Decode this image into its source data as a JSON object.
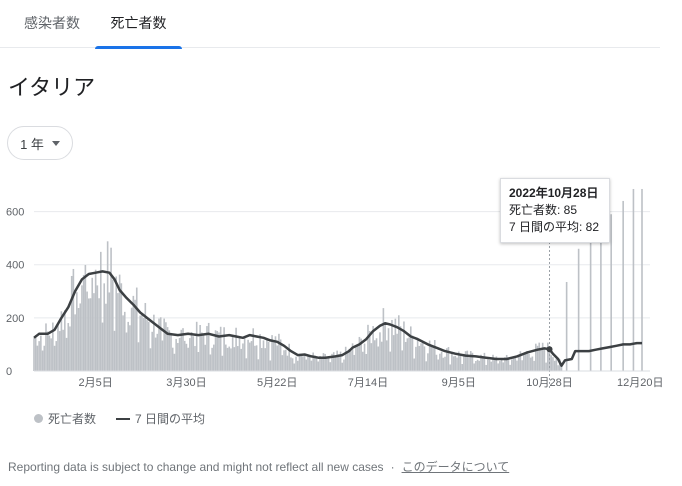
{
  "tabs": [
    {
      "label": "感染者数",
      "active": false
    },
    {
      "label": "死亡者数",
      "active": true
    }
  ],
  "region": "イタリア",
  "range_selector": {
    "label": "1 年"
  },
  "tooltip": {
    "date": "2022年10月28日",
    "deaths": "死亡者数: 85",
    "avg": "7 日間の平均: 82"
  },
  "legend": {
    "deaths": "死亡者数",
    "avg": "7 日間の平均"
  },
  "footer": {
    "note": "Reporting data is subject to change and might not reflect all new cases",
    "separator": "·",
    "link": "このデータについて"
  },
  "colors": {
    "bars": "#bdc1c6",
    "line": "#3c4043",
    "tab_active": "#1a73e8"
  },
  "chart_data": {
    "type": "bar",
    "ylim": [
      0,
      700
    ],
    "y_ticks": [
      "0",
      "200",
      "400",
      "600"
    ],
    "x_tick_labels": [
      "2月5日",
      "3月30日",
      "5月22日",
      "7月14日",
      "9月5日",
      "10月28日",
      "12月20日"
    ],
    "x_tick_day_index": [
      36,
      89,
      142,
      195,
      248,
      301,
      354
    ],
    "highlight_day_index": 301,
    "series": [
      {
        "name": "7 日間の平均",
        "kind": "line",
        "points": [
          [
            0,
            125
          ],
          [
            3,
            140
          ],
          [
            8,
            140
          ],
          [
            12,
            155
          ],
          [
            16,
            200
          ],
          [
            20,
            240
          ],
          [
            24,
            300
          ],
          [
            28,
            345
          ],
          [
            32,
            365
          ],
          [
            36,
            370
          ],
          [
            40,
            375
          ],
          [
            44,
            370
          ],
          [
            47,
            345
          ],
          [
            50,
            305
          ],
          [
            54,
            275
          ],
          [
            58,
            250
          ],
          [
            62,
            220
          ],
          [
            66,
            200
          ],
          [
            70,
            180
          ],
          [
            74,
            160
          ],
          [
            78,
            140
          ],
          [
            84,
            135
          ],
          [
            90,
            140
          ],
          [
            96,
            135
          ],
          [
            102,
            140
          ],
          [
            108,
            130
          ],
          [
            114,
            135
          ],
          [
            118,
            130
          ],
          [
            122,
            125
          ],
          [
            126,
            135
          ],
          [
            130,
            130
          ],
          [
            134,
            125
          ],
          [
            138,
            115
          ],
          [
            142,
            110
          ],
          [
            146,
            95
          ],
          [
            150,
            75
          ],
          [
            154,
            60
          ],
          [
            158,
            62
          ],
          [
            162,
            55
          ],
          [
            166,
            50
          ],
          [
            170,
            50
          ],
          [
            176,
            55
          ],
          [
            180,
            60
          ],
          [
            184,
            75
          ],
          [
            186,
            88
          ],
          [
            190,
            100
          ],
          [
            194,
            120
          ],
          [
            198,
            150
          ],
          [
            202,
            170
          ],
          [
            205,
            180
          ],
          [
            208,
            175
          ],
          [
            212,
            165
          ],
          [
            216,
            150
          ],
          [
            220,
            130
          ],
          [
            224,
            120
          ],
          [
            230,
            100
          ],
          [
            236,
            85
          ],
          [
            240,
            75
          ],
          [
            246,
            65
          ],
          [
            252,
            58
          ],
          [
            258,
            55
          ],
          [
            264,
            50
          ],
          [
            270,
            45
          ],
          [
            276,
            45
          ],
          [
            282,
            55
          ],
          [
            288,
            70
          ],
          [
            294,
            80
          ],
          [
            298,
            85
          ],
          [
            301,
            82
          ],
          [
            303,
            65
          ],
          [
            306,
            45
          ],
          [
            308,
            20
          ],
          [
            310,
            40
          ],
          [
            314,
            45
          ],
          [
            316,
            75
          ],
          [
            324,
            75
          ],
          [
            328,
            80
          ],
          [
            332,
            85
          ],
          [
            336,
            90
          ],
          [
            340,
            95
          ],
          [
            344,
            100
          ],
          [
            348,
            100
          ],
          [
            352,
            105
          ],
          [
            355,
            105
          ]
        ]
      },
      {
        "name": "死亡者数",
        "kind": "bar",
        "spikes": [
          [
            311,
            335
          ],
          [
            318,
            460
          ],
          [
            325,
            550
          ],
          [
            331,
            575
          ],
          [
            337,
            590
          ],
          [
            344,
            640
          ],
          [
            350,
            685
          ],
          [
            355,
            685
          ]
        ]
      }
    ]
  }
}
